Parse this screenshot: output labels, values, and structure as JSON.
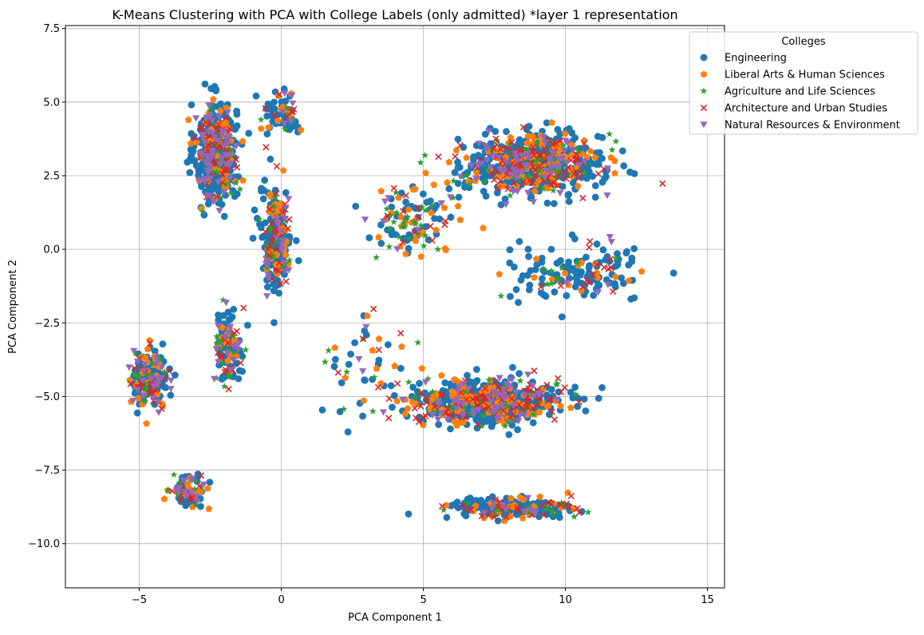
{
  "chart_data": {
    "type": "scatter",
    "title": "K-Means Clustering with PCA with College Labels (only admitted) *layer 1 representation",
    "xlabel": "PCA Component 1",
    "ylabel": "PCA Component 2",
    "xlim": [
      -7.6,
      15.6
    ],
    "ylim": [
      -11.5,
      7.6
    ],
    "xticks": [
      -5,
      0,
      5,
      10,
      15
    ],
    "yticks": [
      -10.0,
      -7.5,
      -5.0,
      -2.5,
      0.0,
      2.5,
      5.0,
      7.5
    ],
    "grid": true,
    "legend": {
      "title": "Colleges",
      "placement": "top-right (outside plot area)"
    },
    "series": [
      {
        "name": "Engineering",
        "color": "#1f77b4",
        "marker": "circle"
      },
      {
        "name": "Liberal Arts & Human Sciences",
        "color": "#ff7f0e",
        "marker": "pentagon"
      },
      {
        "name": "Agriculture and Life Sciences",
        "color": "#2ca02c",
        "marker": "star"
      },
      {
        "name": "Architecture and Urban Studies",
        "color": "#d62728",
        "marker": "x"
      },
      {
        "name": "Natural Resources & Environment",
        "color": "#9467bd",
        "marker": "triangle-down"
      }
    ],
    "clusters": [
      {
        "center": [
          -2.3,
          3.3
        ],
        "spread": [
          0.65,
          1.5
        ],
        "counts": [
          380,
          55,
          35,
          45,
          55
        ]
      },
      {
        "center": [
          0.1,
          4.6
        ],
        "spread": [
          0.7,
          0.7
        ],
        "counts": [
          45,
          10,
          6,
          8,
          6
        ]
      },
      {
        "center": [
          -0.2,
          0.4
        ],
        "spread": [
          0.5,
          1.6
        ],
        "counts": [
          150,
          35,
          20,
          30,
          20
        ]
      },
      {
        "center": [
          -1.9,
          -3.2
        ],
        "spread": [
          0.45,
          1.1
        ],
        "counts": [
          60,
          20,
          15,
          15,
          15
        ]
      },
      {
        "center": [
          -4.6,
          -4.4
        ],
        "spread": [
          0.55,
          0.85
        ],
        "counts": [
          110,
          30,
          20,
          25,
          25
        ]
      },
      {
        "center": [
          -3.2,
          -8.2
        ],
        "spread": [
          0.55,
          0.5
        ],
        "counts": [
          50,
          15,
          10,
          12,
          12
        ]
      },
      {
        "center": [
          8.9,
          2.9
        ],
        "spread": [
          2.2,
          0.9
        ],
        "counts": [
          420,
          110,
          60,
          90,
          60
        ]
      },
      {
        "center": [
          10.5,
          -0.8
        ],
        "spread": [
          2.3,
          0.9
        ],
        "counts": [
          110,
          15,
          10,
          15,
          5
        ]
      },
      {
        "center": [
          7.3,
          -5.2
        ],
        "spread": [
          2.3,
          0.65
        ],
        "counts": [
          400,
          110,
          50,
          90,
          55
        ]
      },
      {
        "center": [
          8.0,
          -8.8
        ],
        "spread": [
          2.0,
          0.35
        ],
        "counts": [
          160,
          30,
          20,
          30,
          10
        ]
      },
      {
        "center": [
          4.5,
          1.0
        ],
        "spread": [
          1.5,
          1.2
        ],
        "counts": [
          45,
          30,
          25,
          12,
          8
        ]
      },
      {
        "center": [
          3.0,
          -4.0
        ],
        "spread": [
          1.5,
          1.5
        ],
        "counts": [
          20,
          12,
          10,
          8,
          3
        ]
      }
    ]
  }
}
